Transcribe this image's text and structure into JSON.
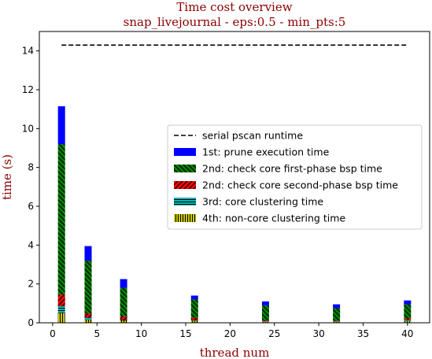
{
  "chart_data": {
    "type": "bar",
    "stacked": true,
    "title": "Time cost overview",
    "subtitle": "snap_livejournal - eps:0.5 - min_pts:5",
    "xlabel": "thread num",
    "ylabel": "time (s)",
    "xlim": [
      -1.5,
      42.5
    ],
    "ylim": [
      0,
      15
    ],
    "xticks": [
      0,
      5,
      10,
      15,
      20,
      25,
      30,
      35,
      40
    ],
    "yticks": [
      0,
      2,
      4,
      6,
      8,
      10,
      12,
      14
    ],
    "grid": false,
    "legend_position": "center-right",
    "x": [
      1,
      4,
      8,
      16,
      24,
      32,
      40
    ],
    "bar_width": 0.8,
    "serial_line": {
      "name": "serial pscan runtime",
      "value": 14.3,
      "x_range": [
        1,
        40
      ],
      "color": "#000000"
    },
    "series": [
      {
        "name": "4th: non-core clustering time",
        "color": "#c8c800",
        "hatch": "vertical",
        "values": [
          0.5,
          0.15,
          0.12,
          0.1,
          0.05,
          0.04,
          0.08
        ]
      },
      {
        "name": "3rd: core clustering time",
        "color": "#00b8b8",
        "hatch": "horizontal",
        "values": [
          0.35,
          0.12,
          0.05,
          0.05,
          0.03,
          0.03,
          0.05
        ]
      },
      {
        "name": "2nd: check core second-phase bsp time",
        "color": "#ff0000",
        "hatch": "diagonal",
        "values": [
          0.6,
          0.2,
          0.15,
          0.1,
          0.05,
          0.04,
          0.07
        ]
      },
      {
        "name": "2nd: check core first-phase bsp time",
        "color": "#008000",
        "hatch": "diagonal",
        "values": [
          7.75,
          2.73,
          1.48,
          0.95,
          0.77,
          0.64,
          0.75
        ]
      },
      {
        "name": "1st: prune execution time",
        "color": "#0000ff",
        "hatch": "none",
        "values": [
          1.95,
          0.75,
          0.45,
          0.2,
          0.2,
          0.2,
          0.2
        ]
      }
    ],
    "legend_order": [
      "serial pscan runtime",
      "1st: prune execution time",
      "2nd: check core first-phase bsp time",
      "2nd: check core second-phase bsp time",
      "3rd: core clustering time",
      "4th: non-core clustering time"
    ]
  }
}
